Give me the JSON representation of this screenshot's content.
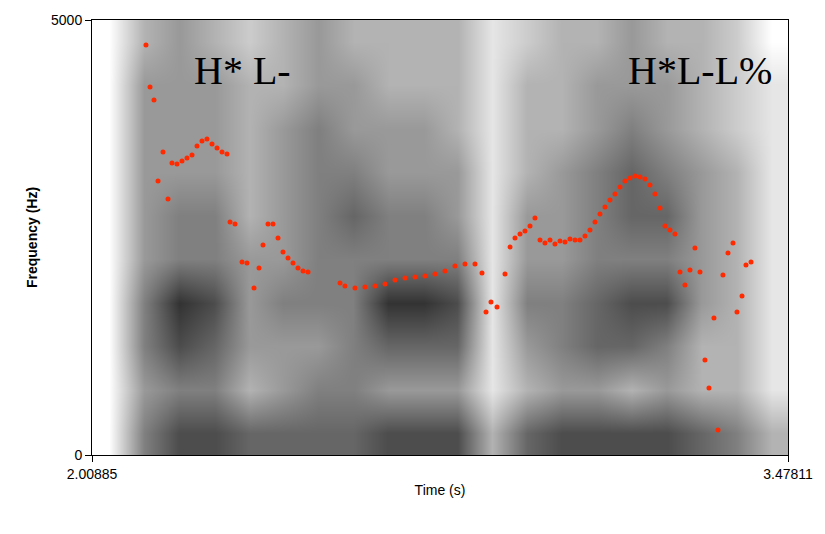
{
  "chart_data": {
    "type": "scatter",
    "x_label": "Time (s)",
    "y_label": "Frequency (Hz)",
    "xlim": [
      2.00885,
      3.47811
    ],
    "xticks": [
      2.00885,
      3.47811
    ],
    "ylim": [
      0,
      5000
    ],
    "yticks": [
      0,
      5000
    ],
    "grid": false,
    "color": "#ff2a00",
    "marker": "circle",
    "x": [
      2.1228,
      2.1313,
      2.1397,
      2.1482,
      2.1588,
      2.1693,
      2.1777,
      2.1883,
      2.1989,
      2.2094,
      2.22,
      2.2305,
      2.2411,
      2.2516,
      2.2622,
      2.2728,
      2.2833,
      2.2939,
      2.3002,
      2.3108,
      2.3255,
      2.3361,
      2.3509,
      2.3614,
      2.3699,
      2.3804,
      2.391,
      2.4015,
      2.4121,
      2.4226,
      2.4332,
      2.4437,
      2.4543,
      2.4649,
      2.5324,
      2.5429,
      2.564,
      2.5851,
      2.6063,
      2.6274,
      2.6485,
      2.6696,
      2.6907,
      2.7118,
      2.7329,
      2.754,
      2.7751,
      2.7962,
      2.8173,
      2.8321,
      2.8406,
      2.8511,
      2.8638,
      2.8807,
      2.8913,
      2.9018,
      2.9124,
      2.9229,
      2.9335,
      2.944,
      2.9546,
      2.9651,
      2.9757,
      2.9862,
      2.9968,
      3.0074,
      3.0179,
      3.0285,
      3.039,
      3.0496,
      3.0601,
      3.0707,
      3.0812,
      3.0918,
      3.1023,
      3.1129,
      3.1235,
      3.134,
      3.1446,
      3.1551,
      3.1657,
      3.1762,
      3.1868,
      3.1973,
      3.2079,
      3.2184,
      3.229,
      3.2395,
      3.2501,
      3.2606,
      3.2712,
      3.2817,
      3.2923,
      3.3028,
      3.3113,
      3.3218,
      3.3303,
      3.3408,
      3.3514,
      3.362,
      3.3704,
      3.381,
      3.3894,
      3.4
    ],
    "values": [
      4712,
      4230,
      4080,
      3149,
      3483,
      2942,
      3356,
      3345,
      3379,
      3414,
      3448,
      3552,
      3609,
      3632,
      3575,
      3529,
      3483,
      3460,
      2678,
      2655,
      2218,
      2207,
      1919,
      2149,
      2414,
      2655,
      2655,
      2494,
      2333,
      2264,
      2207,
      2149,
      2115,
      2103,
      1977,
      1942,
      1919,
      1931,
      1942,
      1965,
      2011,
      2034,
      2046,
      2057,
      2080,
      2115,
      2172,
      2195,
      2195,
      2092,
      1644,
      1759,
      1701,
      2080,
      2391,
      2494,
      2540,
      2575,
      2632,
      2724,
      2471,
      2437,
      2471,
      2425,
      2460,
      2448,
      2483,
      2471,
      2471,
      2517,
      2586,
      2678,
      2770,
      2851,
      2931,
      3000,
      3080,
      3149,
      3184,
      3207,
      3195,
      3172,
      3103,
      3000,
      2839,
      2632,
      2586,
      2540,
      2103,
      1954,
      2126,
      2379,
      2103,
      1092,
      770,
      1575,
      287,
      2069,
      2322,
      2437,
      1644,
      1828,
      2184,
      2218
    ],
    "annotations": [
      {
        "text": "H* L-",
        "x": 2.3255,
        "y": 4425
      },
      {
        "text": "H*L-L%",
        "x": 3.2923,
        "y": 4425
      }
    ],
    "spectrogram": {
      "x": [
        2.0456,
        2.119,
        2.1925,
        2.266,
        2.3394,
        2.4129,
        2.4863,
        2.5598,
        2.6333,
        2.7067,
        2.7802,
        2.8536,
        2.9271,
        3.0006,
        3.074,
        3.1475,
        3.2209,
        3.2944,
        3.3679,
        3.4413
      ],
      "y": [
        250,
        750,
        1250,
        1750,
        2250,
        2750,
        3250,
        3750,
        4250,
        4750
      ],
      "zlim": [
        0,
        1
      ],
      "z": [
        [
          0,
          0.5,
          0.7,
          0.7,
          0.6,
          0.6,
          0.6,
          0.6,
          0.7,
          0.7,
          0.7,
          0.3,
          0.6,
          0.7,
          0.7,
          0.7,
          0.7,
          0.6,
          0.5,
          0.3
        ],
        [
          0,
          0.4,
          0.5,
          0.5,
          0.3,
          0.4,
          0.5,
          0.5,
          0.4,
          0.4,
          0.4,
          0.1,
          0.3,
          0.4,
          0.4,
          0.3,
          0.4,
          0.3,
          0.3,
          0.1
        ],
        [
          0,
          0.5,
          0.7,
          0.6,
          0.4,
          0.4,
          0.4,
          0.5,
          0.6,
          0.6,
          0.6,
          0.1,
          0.4,
          0.5,
          0.6,
          0.6,
          0.5,
          0.3,
          0.3,
          0.1
        ],
        [
          0,
          0.5,
          0.8,
          0.7,
          0.4,
          0.5,
          0.5,
          0.5,
          0.8,
          0.8,
          0.7,
          0.1,
          0.5,
          0.5,
          0.6,
          0.7,
          0.7,
          0.4,
          0.3,
          0.1
        ],
        [
          0,
          0.4,
          0.5,
          0.5,
          0.4,
          0.4,
          0.5,
          0.5,
          0.5,
          0.5,
          0.5,
          0.1,
          0.4,
          0.4,
          0.5,
          0.5,
          0.5,
          0.4,
          0.3,
          0.1
        ],
        [
          0,
          0.4,
          0.5,
          0.5,
          0.3,
          0.4,
          0.5,
          0.6,
          0.5,
          0.5,
          0.4,
          0.1,
          0.4,
          0.4,
          0.5,
          0.6,
          0.6,
          0.4,
          0.3,
          0.1
        ],
        [
          0,
          0.4,
          0.4,
          0.4,
          0.3,
          0.4,
          0.5,
          0.5,
          0.4,
          0.4,
          0.4,
          0.1,
          0.3,
          0.4,
          0.5,
          0.6,
          0.5,
          0.4,
          0.3,
          0.1
        ],
        [
          0,
          0.4,
          0.4,
          0.4,
          0.3,
          0.4,
          0.5,
          0.4,
          0.4,
          0.4,
          0.3,
          0.1,
          0.3,
          0.3,
          0.4,
          0.5,
          0.4,
          0.3,
          0.2,
          0.1
        ],
        [
          0,
          0.4,
          0.4,
          0.4,
          0.3,
          0.3,
          0.4,
          0.4,
          0.3,
          0.3,
          0.3,
          0.1,
          0.3,
          0.3,
          0.4,
          0.4,
          0.4,
          0.3,
          0.2,
          0.1
        ],
        [
          0,
          0.3,
          0.4,
          0.3,
          0.2,
          0.3,
          0.4,
          0.3,
          0.3,
          0.3,
          0.3,
          0.1,
          0.2,
          0.3,
          0.3,
          0.4,
          0.3,
          0.3,
          0.2,
          0.0
        ]
      ]
    }
  }
}
